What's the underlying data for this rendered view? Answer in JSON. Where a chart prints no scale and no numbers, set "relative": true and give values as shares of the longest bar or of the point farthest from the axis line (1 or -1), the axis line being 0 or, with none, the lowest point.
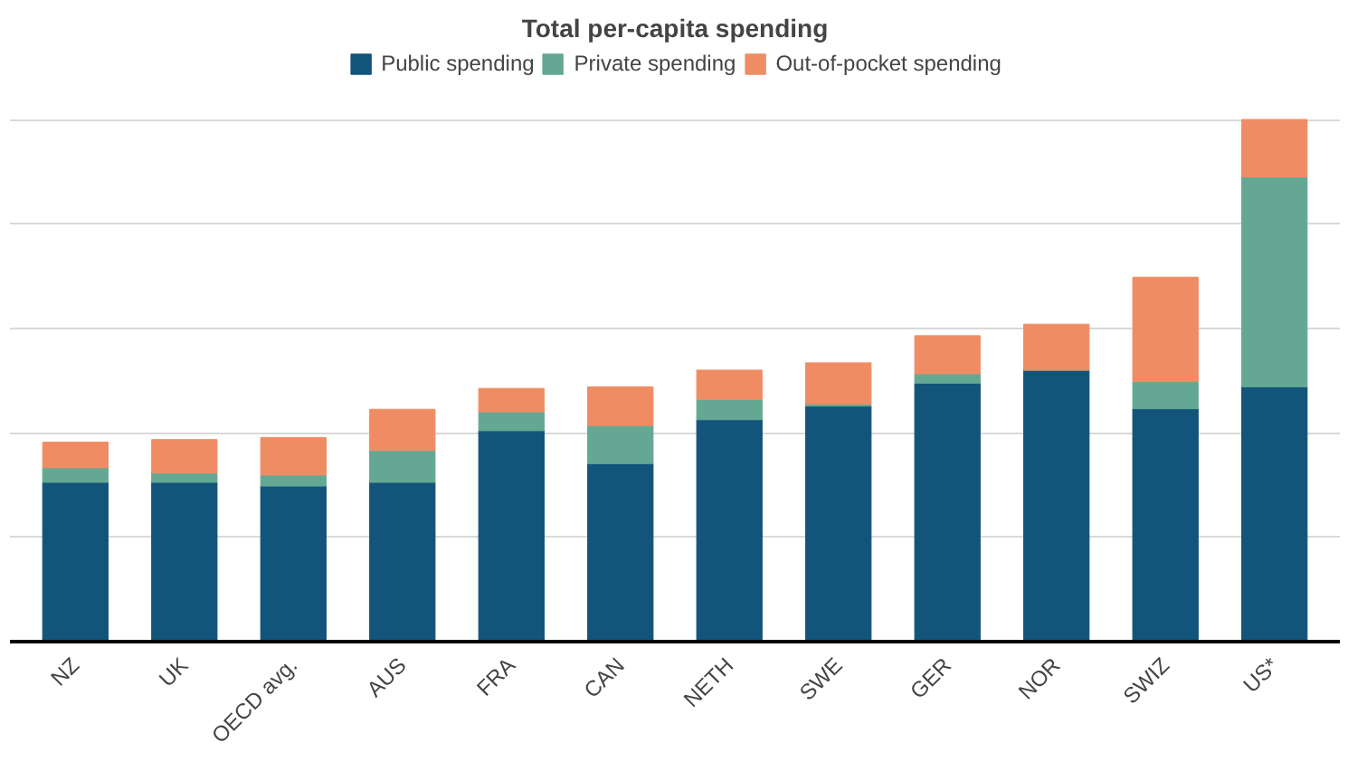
{
  "chart_data": {
    "type": "bar",
    "title": "Total per-capita spending",
    "stacked": true,
    "relative": true,
    "categories": [
      "NZ",
      "UK",
      "OECD avg.",
      "AUS",
      "FRA",
      "CAN",
      "NETH",
      "SWE",
      "GER",
      "NOR",
      "SWIZ",
      "US*"
    ],
    "series": [
      {
        "name": "Public spending",
        "color": "#12547a",
        "values": [
          0.305,
          0.305,
          0.298,
          0.305,
          0.404,
          0.341,
          0.425,
          0.451,
          0.495,
          0.52,
          0.446,
          0.488
        ]
      },
      {
        "name": "Private spending",
        "color": "#64a894",
        "values": [
          0.028,
          0.018,
          0.021,
          0.061,
          0.036,
          0.073,
          0.039,
          0.004,
          0.018,
          0,
          0.052,
          0.402
        ]
      },
      {
        "name": "Out-of-pocket spending",
        "color": "#f08c64",
        "values": [
          0.049,
          0.064,
          0.072,
          0.079,
          0.045,
          0.074,
          0.056,
          0.079,
          0.073,
          0.088,
          0.2,
          0.11
        ]
      }
    ],
    "grid": "y",
    "legend": "top"
  }
}
